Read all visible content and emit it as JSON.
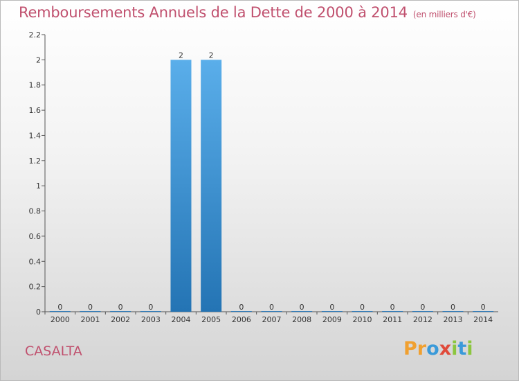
{
  "title": "Remboursements Annuels de la Dette de 2000 à 2014",
  "subtitle": "(en milliers d'€)",
  "commune": "CASALTA",
  "brand": {
    "letters": [
      "P",
      "r",
      "o",
      "x",
      "i",
      "t",
      "i"
    ],
    "colors": [
      "#f0a030",
      "#f0a030",
      "#3a9ad9",
      "#e04a3a",
      "#8cc63f",
      "#3a9ad9",
      "#8cc63f"
    ]
  },
  "colors": {
    "title": "#c0506e",
    "bar_top": "#5aaeea",
    "bar_bottom": "#2474b4"
  },
  "chart_data": {
    "type": "bar",
    "categories": [
      "2000",
      "2001",
      "2002",
      "2003",
      "2004",
      "2005",
      "2006",
      "2007",
      "2008",
      "2009",
      "2010",
      "2011",
      "2012",
      "2013",
      "2014"
    ],
    "values": [
      0,
      0,
      0,
      0,
      2,
      2,
      0,
      0,
      0,
      0,
      0,
      0,
      0,
      0,
      0
    ],
    "data_labels": [
      "0",
      "0",
      "0",
      "0",
      "2",
      "2",
      "0",
      "0",
      "0",
      "0",
      "0",
      "0",
      "0",
      "0",
      "0"
    ],
    "yticks": [
      "0",
      "0.2",
      "0.4",
      "0.6",
      "0.8",
      "1",
      "1.2",
      "1.4",
      "1.6",
      "1.8",
      "2",
      "2.2"
    ],
    "ylim": [
      0,
      2.2
    ],
    "title": "Remboursements Annuels de la Dette de 2000 à 2014",
    "xlabel": "",
    "ylabel": ""
  }
}
